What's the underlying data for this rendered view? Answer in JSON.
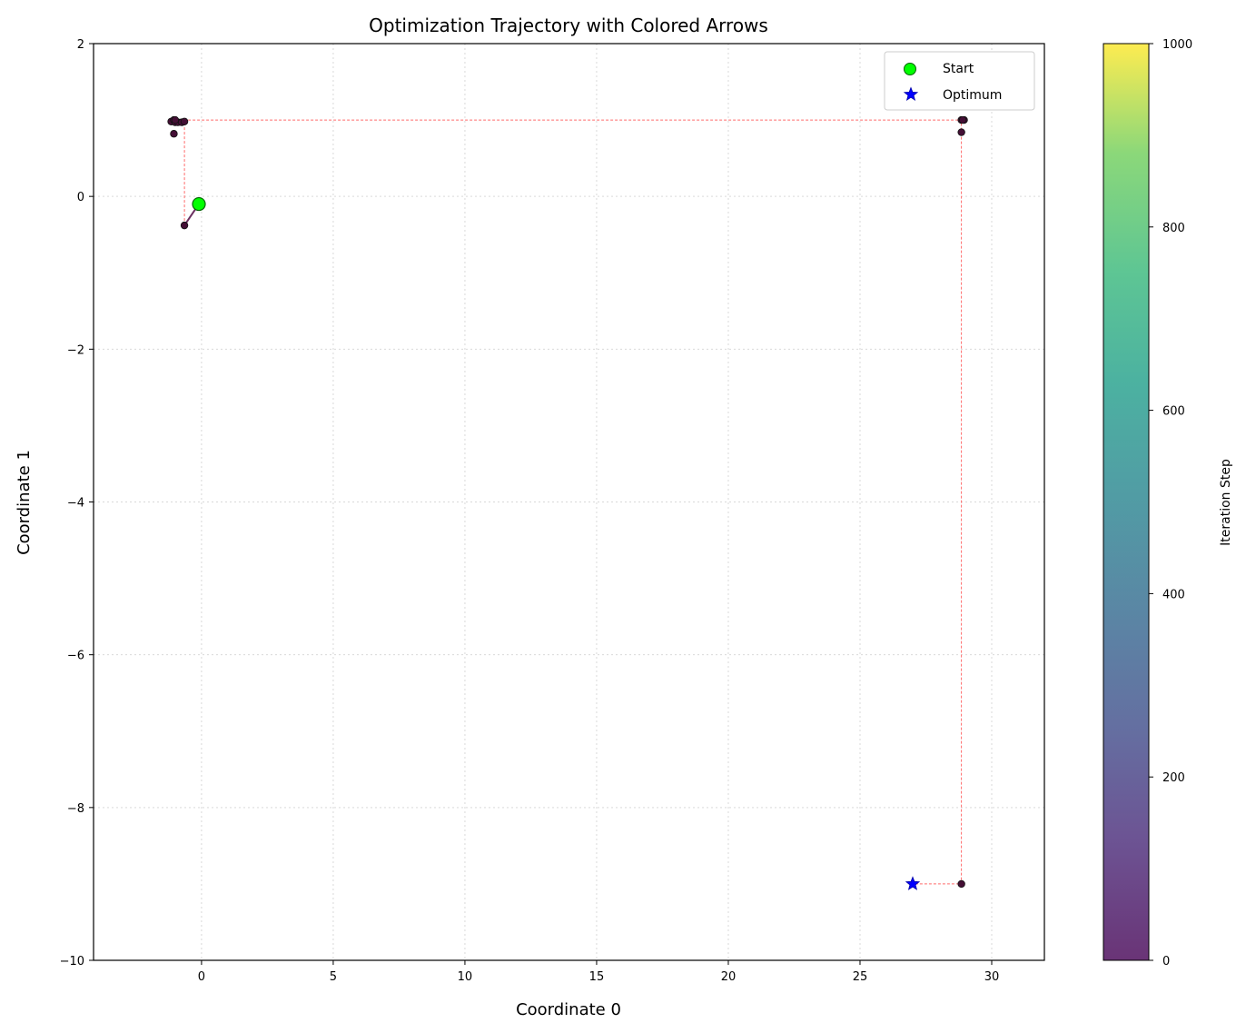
{
  "chart_data": {
    "type": "scatter",
    "title": "Optimization Trajectory with Colored Arrows",
    "xlabel": "Coordinate 0",
    "ylabel": "Coordinate 1",
    "xlim": [
      -4.1,
      32.0
    ],
    "ylim": [
      -10,
      2
    ],
    "xticks": [
      0,
      5,
      10,
      15,
      20,
      25,
      30
    ],
    "yticks": [
      -10,
      -8,
      -6,
      -4,
      -2,
      0,
      2
    ],
    "xtick_labels": [
      "0",
      "5",
      "10",
      "15",
      "20",
      "25",
      "30"
    ],
    "ytick_labels": [
      "−10",
      "−8",
      "−6",
      "−4",
      "−2",
      "0",
      "2"
    ],
    "grid": true,
    "legend_position": "top-right",
    "legend": [
      {
        "label": "Start",
        "marker": "circle",
        "color": "#00ff00"
      },
      {
        "label": "Optimum",
        "marker": "star",
        "color": "#0000ff"
      }
    ],
    "colorbar": {
      "label": "Iteration Step",
      "range": [
        0,
        1000
      ],
      "ticks": [
        0,
        200,
        400,
        600,
        800,
        1000
      ],
      "tick_labels": [
        "0",
        "200",
        "400",
        "600",
        "800",
        "1000"
      ],
      "colormap": "viridis"
    },
    "start": {
      "x": -0.1,
      "y": -0.1
    },
    "optimum": {
      "x": 27.0,
      "y": -9.0
    },
    "trajectory_arrow": [
      {
        "x": -0.1,
        "y": -0.1
      },
      {
        "x": -0.65,
        "y": -0.38
      }
    ],
    "trajectory_dashed": [
      {
        "x": -0.65,
        "y": -0.38
      },
      {
        "x": -0.65,
        "y": 1.0
      },
      {
        "x": 28.85,
        "y": 1.0
      },
      {
        "x": 28.85,
        "y": -9.0
      },
      {
        "x": 27.0,
        "y": -9.0
      }
    ],
    "iterate_points": [
      {
        "x": -0.65,
        "y": -0.38
      },
      {
        "x": -1.05,
        "y": 0.82
      },
      {
        "x": -1.15,
        "y": 0.98
      },
      {
        "x": -1.05,
        "y": 1.0
      },
      {
        "x": -1.0,
        "y": 0.97
      },
      {
        "x": -0.9,
        "y": 0.97
      },
      {
        "x": -0.75,
        "y": 0.97
      },
      {
        "x": -0.65,
        "y": 0.98
      },
      {
        "x": -1.0,
        "y": 1.0
      },
      {
        "x": 28.85,
        "y": 1.0
      },
      {
        "x": 28.95,
        "y": 1.0
      },
      {
        "x": 28.9,
        "y": 1.0
      },
      {
        "x": 28.85,
        "y": 0.84
      },
      {
        "x": 28.85,
        "y": -9.0
      }
    ]
  },
  "colors": {
    "dashed_line": "#ff6b6b",
    "arrow": "#6b3060",
    "point_fill": "#440f35",
    "start_fill": "#00ff00",
    "optimum_fill": "#0000ff",
    "grid": "#d9d9d9"
  }
}
